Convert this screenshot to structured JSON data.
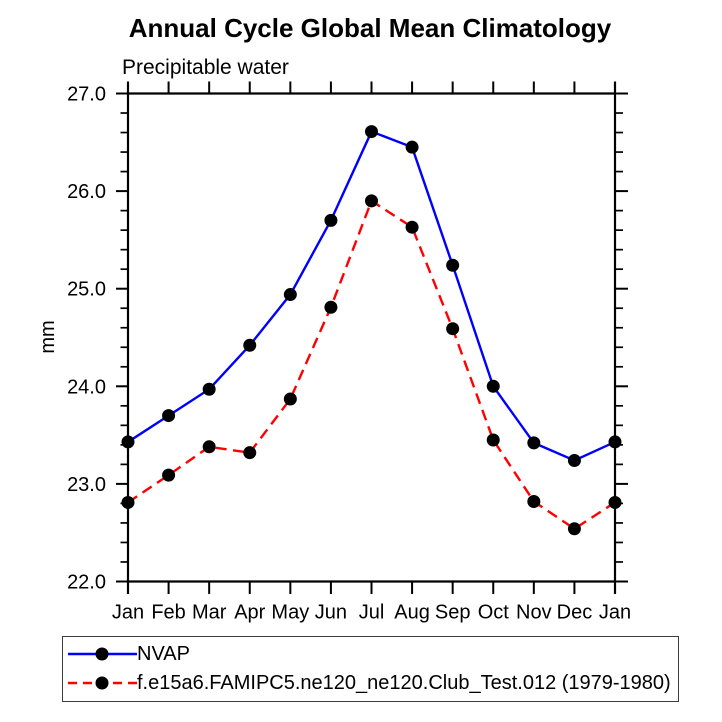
{
  "chart_data": {
    "type": "line",
    "title": "Annual Cycle Global Mean Climatology",
    "subtitle": "Precipitable water",
    "ylabel": "mm",
    "xlabel": "",
    "x_categories": [
      "Jan",
      "Feb",
      "Mar",
      "Apr",
      "May",
      "Jun",
      "Jul",
      "Aug",
      "Sep",
      "Oct",
      "Nov",
      "Dec",
      "Jan"
    ],
    "ylim": [
      22.0,
      27.0
    ],
    "ytick_values": [
      22,
      23,
      24,
      25,
      26,
      27
    ],
    "ytick_labels": [
      "22.0",
      "23.0",
      "24.0",
      "25.0",
      "26.0",
      "27.0"
    ],
    "y_minor_step": 0.2,
    "grid": false,
    "background_color": "#ffffff",
    "axis_color": "#000000",
    "text_color": "#000000",
    "legend_position": "below-left",
    "series": [
      {
        "name": "NVAP",
        "color": "#0000ff",
        "line_style": "solid",
        "marker": "filled-circle",
        "marker_color": "#000000",
        "values": [
          23.43,
          23.7,
          23.97,
          24.42,
          24.94,
          25.7,
          26.61,
          26.45,
          25.24,
          24.0,
          23.42,
          23.24,
          23.43
        ]
      },
      {
        "name": "f.e15a6.FAMIPC5.ne120_ne120.Club_Test.012 (1979-1980)",
        "color": "#ff0000",
        "line_style": "dashed",
        "marker": "filled-circle",
        "marker_color": "#000000",
        "values": [
          22.81,
          23.09,
          23.38,
          23.32,
          23.87,
          24.81,
          25.9,
          25.63,
          24.59,
          23.45,
          22.82,
          22.54,
          22.81
        ]
      }
    ]
  }
}
